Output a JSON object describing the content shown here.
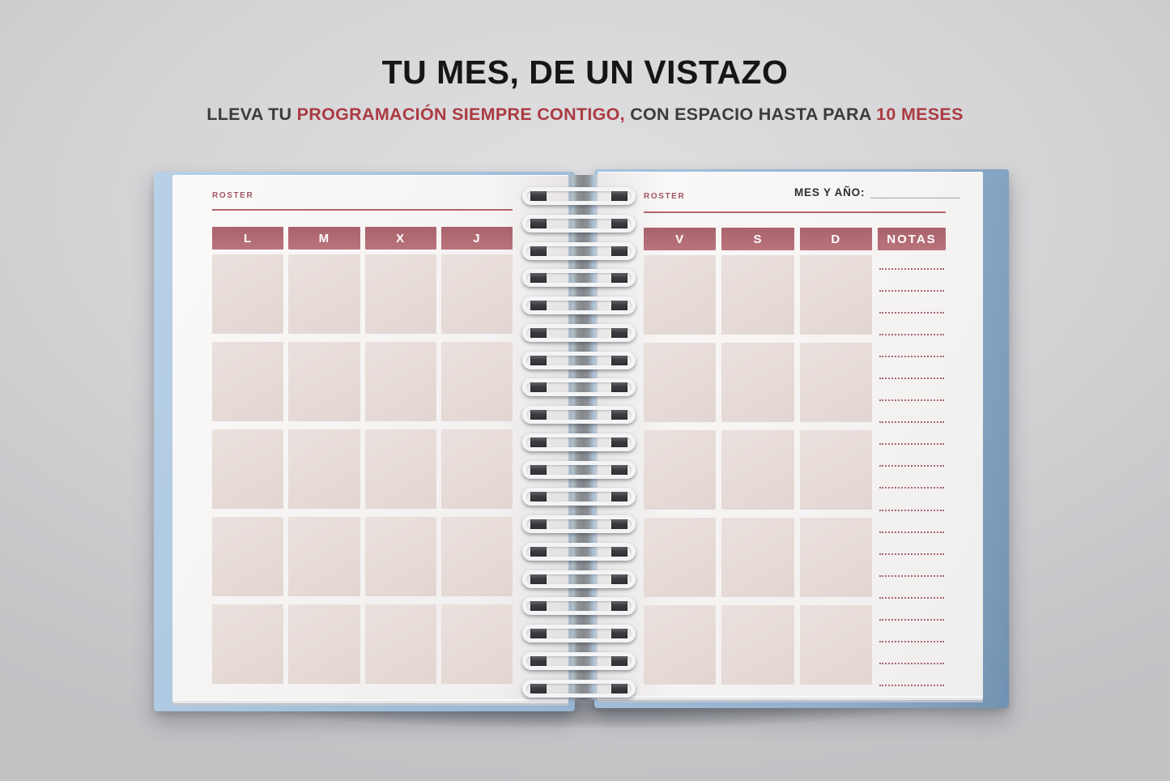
{
  "headline": {
    "title": "TU MES, DE UN VISTAZO",
    "subtitle_parts": [
      {
        "text": "LLEVA TU ",
        "emphasis": false
      },
      {
        "text": "PROGRAMACIÓN SIEMPRE CONTIGO,",
        "emphasis": true
      },
      {
        "text": " CON ESPACIO HASTA PARA ",
        "emphasis": false
      },
      {
        "text": "10 MESES",
        "emphasis": true
      }
    ]
  },
  "notebook": {
    "left_page": {
      "label": "ROSTER",
      "day_headers": [
        "L",
        "M",
        "X",
        "J"
      ],
      "grid_rows": 5,
      "grid_columns": 4,
      "cells": 20
    },
    "right_page": {
      "label": "ROSTER",
      "month_year_label": "MES Y AÑO:",
      "month_year_value": "",
      "day_headers": [
        "V",
        "S",
        "D"
      ],
      "notes_header": "NOTAS",
      "grid_rows": 5,
      "grid_columns": 3,
      "cells": 15,
      "notes_lines": 20
    },
    "binding_coils": 19
  },
  "colors": {
    "accent_red": "#ab3a42",
    "header_mauve": "#b06b74",
    "cell_pink": "#e7dcd8",
    "cover_blue": "#a8c4de",
    "label_red": "#a05660",
    "title_black": "#161616",
    "subtitle_dark": "#3c3c3e"
  }
}
